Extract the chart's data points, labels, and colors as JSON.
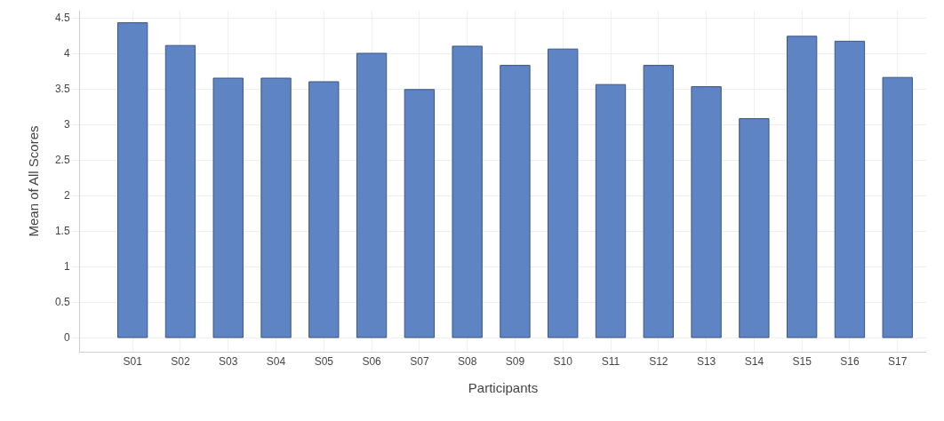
{
  "chart_data": {
    "type": "bar",
    "xlabel": "Participants",
    "ylabel": "Mean of All Scores",
    "categories": [
      "S01",
      "S02",
      "S03",
      "S04",
      "S05",
      "S06",
      "S07",
      "S08",
      "S09",
      "S10",
      "S11",
      "S12",
      "S13",
      "S14",
      "S15",
      "S16",
      "S17"
    ],
    "values": [
      4.43,
      4.11,
      3.65,
      3.65,
      3.6,
      4.0,
      3.49,
      4.1,
      3.83,
      4.06,
      3.56,
      3.83,
      3.53,
      3.08,
      4.24,
      4.17,
      3.66
    ],
    "color": "#5f84c4",
    "ylim": [
      -0.2,
      4.6
    ],
    "yticks": [
      0,
      0.5,
      1,
      1.5,
      2,
      2.5,
      3,
      3.5,
      4,
      4.5
    ],
    "grid": true
  }
}
